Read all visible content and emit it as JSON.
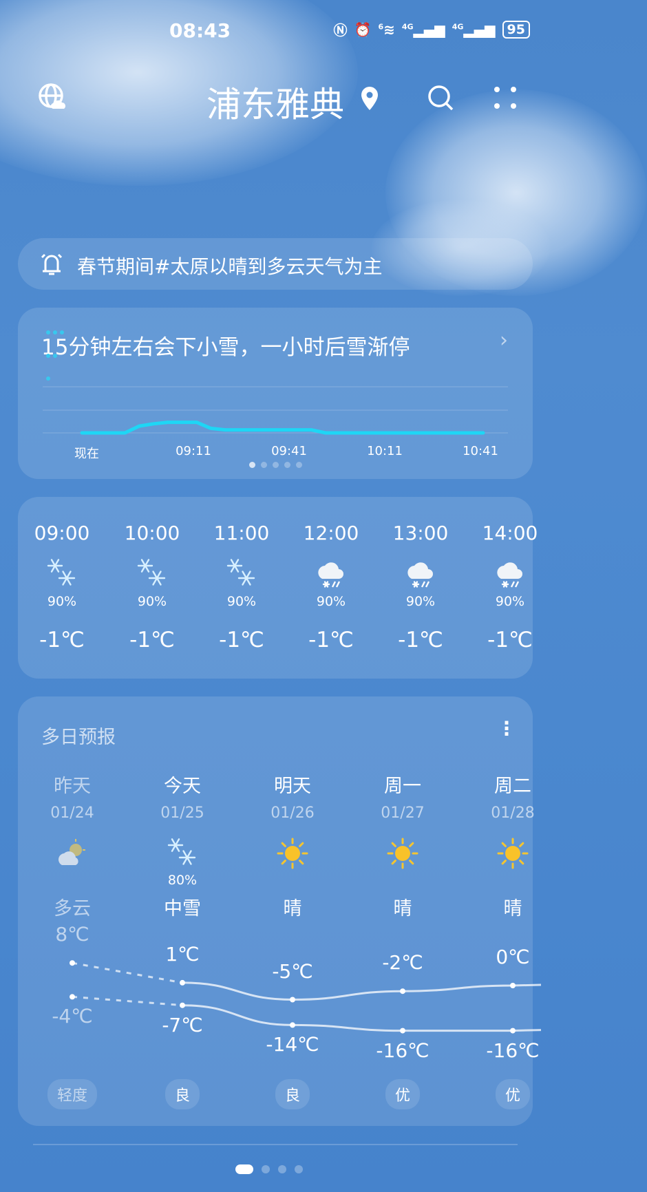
{
  "status_bar": {
    "time": "08:43",
    "network1": "4G",
    "network2": "4G",
    "wifi_badge": "6",
    "battery": "95"
  },
  "header": {
    "title": "浦东雅典"
  },
  "notice": {
    "text": "春节期间#太原以晴到多云天气为主"
  },
  "minute_forecast": {
    "title": "15分钟左右会下小雪，一小时后雪渐停",
    "x_labels": [
      "现在",
      "09:11",
      "09:41",
      "10:11",
      "10:41"
    ],
    "intensity": [
      0,
      0,
      0,
      0,
      0.45,
      0.6,
      0.7,
      0.7,
      0.7,
      0.3,
      0.2,
      0.2,
      0.2,
      0.2,
      0.2,
      0.2,
      0.2,
      0,
      0,
      0,
      0,
      0,
      0,
      0,
      0,
      0,
      0,
      0,
      0
    ],
    "page_count": 5,
    "active_page": 0,
    "line_color": "#1ed6f5"
  },
  "hourly": [
    {
      "time": "09:00",
      "icon": "snow-icon",
      "pop": "90%",
      "temp": "-1℃"
    },
    {
      "time": "10:00",
      "icon": "snow-icon",
      "pop": "90%",
      "temp": "-1℃"
    },
    {
      "time": "11:00",
      "icon": "snow-icon",
      "pop": "90%",
      "temp": "-1℃"
    },
    {
      "time": "12:00",
      "icon": "cloud-sleet-icon",
      "pop": "90%",
      "temp": "-1℃"
    },
    {
      "time": "13:00",
      "icon": "cloud-sleet-icon",
      "pop": "90%",
      "temp": "-1℃"
    },
    {
      "time": "14:00",
      "icon": "cloud-sleet-icon",
      "pop": "90%",
      "temp": "-1℃"
    }
  ],
  "daily": {
    "title": "多日预报",
    "days": [
      {
        "day": "昨天",
        "date": "01/24",
        "icon": "partly-cloudy-icon",
        "pop": "",
        "cond": "多云",
        "high": 8,
        "low": -4,
        "high_label": "8℃",
        "low_label": "-4℃",
        "aqi": "轻度",
        "past": true
      },
      {
        "day": "今天",
        "date": "01/25",
        "icon": "snow-icon",
        "pop": "80%",
        "cond": "中雪",
        "high": 1,
        "low": -7,
        "high_label": "1℃",
        "low_label": "-7℃",
        "aqi": "良"
      },
      {
        "day": "明天",
        "date": "01/26",
        "icon": "sun-icon",
        "pop": "",
        "cond": "晴",
        "high": -5,
        "low": -14,
        "high_label": "-5℃",
        "low_label": "-14℃",
        "aqi": "良"
      },
      {
        "day": "周一",
        "date": "01/27",
        "icon": "sun-icon",
        "pop": "",
        "cond": "晴",
        "high": -2,
        "low": -16,
        "high_label": "-2℃",
        "low_label": "-16℃",
        "aqi": "优"
      },
      {
        "day": "周二",
        "date": "01/28",
        "icon": "sun-icon",
        "pop": "",
        "cond": "晴",
        "high": 0,
        "low": -16,
        "high_label": "0℃",
        "low_label": "-16℃",
        "aqi": "优"
      }
    ]
  },
  "pager": {
    "count": 4,
    "active": 0
  }
}
